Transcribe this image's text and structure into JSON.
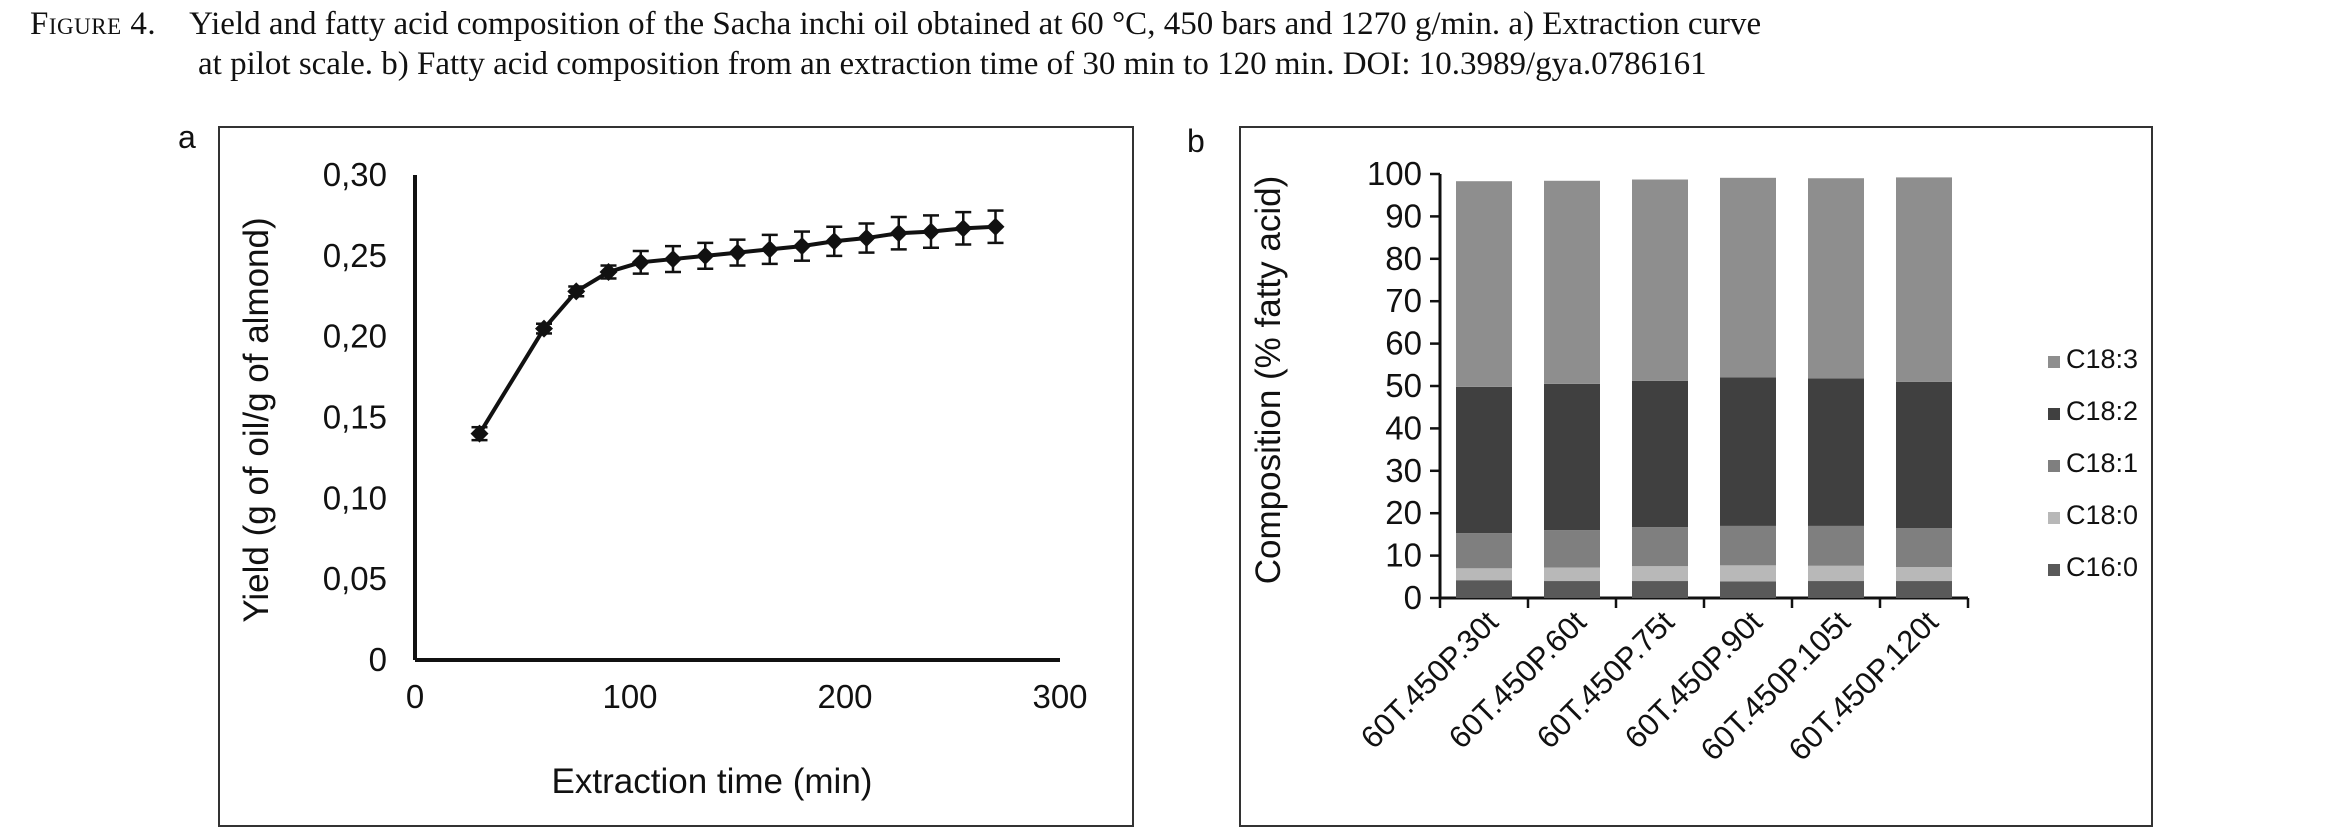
{
  "caption": {
    "figure_label": "Figure 4.",
    "line1": "Yield and fatty acid composition of the Sacha inchi oil obtained at 60 °C, 450 bars and 1270 g/min. a) Extraction curve",
    "line2": "at pilot scale. b) Fatty acid composition from an extraction time of 30 min to 120 min. DOI: 10.3989/gya.0786161"
  },
  "chart_data": [
    {
      "panel_label": "a",
      "type": "line",
      "xlabel": "Extraction time (min)",
      "ylabel": "Yield (g of oil/g of almond)",
      "xlim": [
        0,
        300
      ],
      "ylim": [
        0,
        0.3
      ],
      "x_ticks": [
        0,
        100,
        200,
        300
      ],
      "x_tick_labels": [
        "0",
        "100",
        "200",
        "300"
      ],
      "y_ticks": [
        0,
        0.05,
        0.1,
        0.15,
        0.2,
        0.25,
        0.3
      ],
      "y_tick_labels": [
        "0",
        "0,05",
        "0,10",
        "0,15",
        "0,20",
        "0,25",
        "0,30"
      ],
      "grid": false,
      "series": [
        {
          "marker": "diamond",
          "color": "#111111",
          "x": [
            30,
            60,
            75,
            90,
            105,
            120,
            135,
            150,
            165,
            180,
            195,
            210,
            225,
            240,
            255,
            270
          ],
          "y": [
            0.14,
            0.205,
            0.228,
            0.24,
            0.246,
            0.248,
            0.25,
            0.252,
            0.254,
            0.256,
            0.259,
            0.261,
            0.264,
            0.265,
            0.267,
            0.268
          ],
          "error": [
            0.004,
            0.003,
            0.003,
            0.004,
            0.007,
            0.008,
            0.008,
            0.008,
            0.009,
            0.009,
            0.009,
            0.009,
            0.01,
            0.01,
            0.01,
            0.01
          ]
        }
      ]
    },
    {
      "panel_label": "b",
      "type": "bar",
      "stacked": true,
      "ylabel": "Composition (% fatty acid)",
      "ylim": [
        0,
        100
      ],
      "y_ticks": [
        0,
        10,
        20,
        30,
        40,
        50,
        60,
        70,
        80,
        90,
        100
      ],
      "categories": [
        "60T.450P.30t",
        "60T.450P.60t",
        "60T.450P.75t",
        "60T.450P.90t",
        "60T.450P.105t",
        "60T.450P.120t"
      ],
      "legend_position": "right",
      "grid": false,
      "series": [
        {
          "name": "C16:0",
          "color": "#595959",
          "values": [
            4.2,
            4.0,
            4.0,
            3.9,
            4.0,
            4.0
          ]
        },
        {
          "name": "C18:0",
          "color": "#b8b8b8",
          "values": [
            2.8,
            3.2,
            3.5,
            3.8,
            3.6,
            3.3
          ]
        },
        {
          "name": "C18:1",
          "color": "#7f7f7f",
          "values": [
            8.3,
            8.8,
            9.2,
            9.3,
            9.4,
            9.2
          ]
        },
        {
          "name": "C18:2",
          "color": "#404040",
          "values": [
            34.5,
            34.5,
            34.5,
            35.0,
            34.8,
            34.5
          ]
        },
        {
          "name": "C18:3",
          "color": "#8e8e8e",
          "values": [
            48.5,
            47.9,
            47.5,
            47.1,
            47.2,
            48.2
          ]
        }
      ],
      "legend_order": [
        "C18:3",
        "C18:2",
        "C18:1",
        "C18:0",
        "C16:0"
      ]
    }
  ]
}
